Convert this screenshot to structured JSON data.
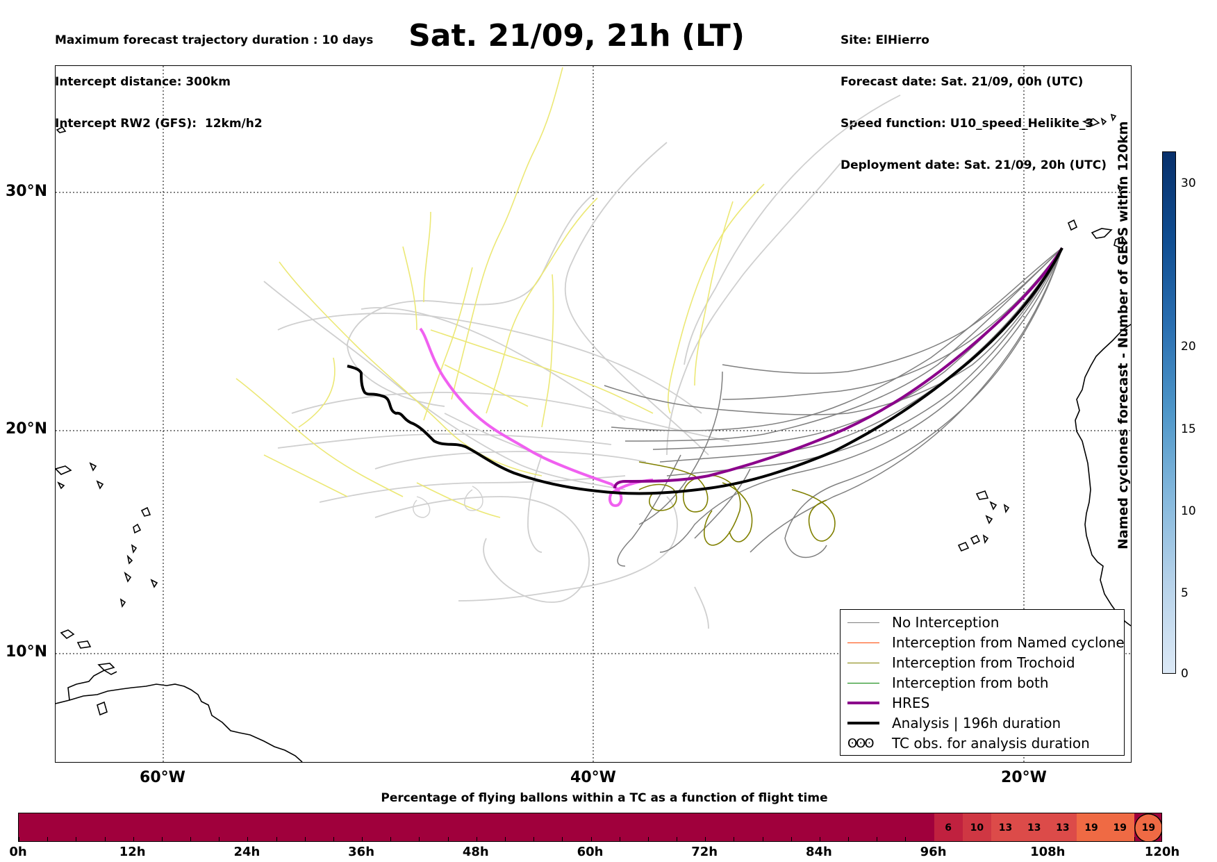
{
  "header": {
    "left_lines": [
      "Maximum forecast trajectory duration : 10 days",
      "Intercept distance: 300km",
      "Intercept RW2 (GFS):  12km/h2"
    ],
    "title": "Sat. 21/09, 21h (LT)",
    "right_lines": [
      "Site: ElHierro",
      "Forecast date: Sat. 21/09, 00h (UTC)",
      "Speed function: U10_speed_Helikite_3",
      "Deployment date: Sat. 21/09, 20h (UTC)"
    ]
  },
  "map": {
    "lat_labels": [
      "30°N",
      "20°N",
      "10°N"
    ],
    "lon_labels": [
      "60°W",
      "40°W",
      "20°W"
    ],
    "extent": {
      "lon": [
        -65,
        -15
      ],
      "lat": [
        5.3,
        34.5
      ]
    },
    "colors": {
      "no_interception": "#7f7f7f",
      "light_ensemble": "#cfcfcf",
      "trochoid": "#808000",
      "yellow_tracks": "#ece875",
      "hres": "#8b008b",
      "hres_light": "#f060f0",
      "analysis": "#000000"
    }
  },
  "legend": [
    {
      "label": "No Interception",
      "color": "#7f7f7f",
      "width": 1.5,
      "icon": "line"
    },
    {
      "label": "Interception from Named cyclone",
      "color": "#ff4500",
      "width": 1.5,
      "icon": "line"
    },
    {
      "label": "Interception from Trochoid",
      "color": "#808000",
      "width": 1.5,
      "icon": "line"
    },
    {
      "label": "Interception from both",
      "color": "#008000",
      "width": 1.5,
      "icon": "line"
    },
    {
      "label": "HRES",
      "color": "#8b008b",
      "width": 4,
      "icon": "line"
    },
    {
      "label": "Analysis | 196h duration",
      "color": "#000000",
      "width": 4,
      "icon": "line"
    },
    {
      "label": "TC obs. for analysis duration",
      "color": "#000000",
      "width": 1.5,
      "icon": "loop-icon"
    }
  ],
  "colorbar": {
    "label": "Named cyclones forecast - Number of GEFS within 120km",
    "ticks": [
      "30",
      "20",
      "15",
      "10",
      "5",
      "0"
    ]
  },
  "percentage_bar": {
    "title": "Percentage of flying ballons within a TC as a function of flight time",
    "time_labels": [
      "0h",
      "12h",
      "24h",
      "36h",
      "48h",
      "60h",
      "72h",
      "84h",
      "96h",
      "108h",
      "120h"
    ],
    "cells": [
      {
        "hour_start": 96,
        "value": "6",
        "color": "#c0213f"
      },
      {
        "hour_start": 99,
        "value": "10",
        "color": "#cf3743"
      },
      {
        "hour_start": 102,
        "value": "13",
        "color": "#dc4b49"
      },
      {
        "hour_start": 105,
        "value": "13",
        "color": "#dc4b49"
      },
      {
        "hour_start": 108,
        "value": "13",
        "color": "#dc4b49"
      },
      {
        "hour_start": 111,
        "value": "19",
        "color": "#ef6a44"
      },
      {
        "hour_start": 114,
        "value": "19",
        "color": "#ef6a44"
      },
      {
        "hour_start": 117,
        "value": "19",
        "color": "#ef6a44"
      }
    ],
    "base_color": "#a0003c"
  }
}
